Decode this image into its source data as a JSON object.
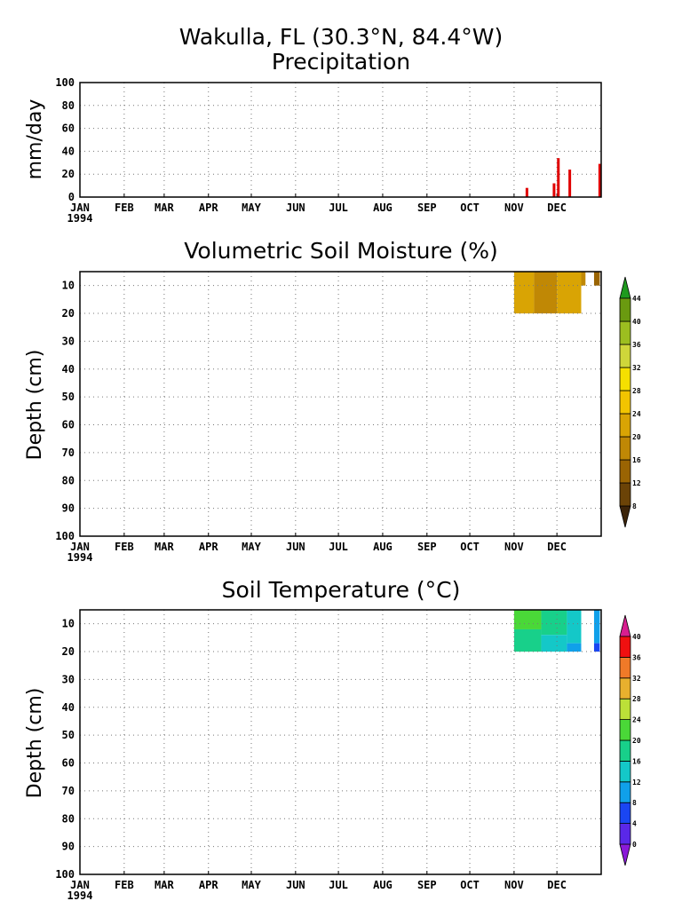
{
  "header": {
    "title_line1": "Wakulla, FL   (30.3°N, 84.4°W)",
    "title_line2": "Precipitation"
  },
  "chart_data": [
    {
      "type": "bar",
      "title": "Precipitation",
      "ylabel": "mm/day",
      "ylim": [
        0,
        100
      ],
      "yticks": [
        "0",
        "20",
        "40",
        "60",
        "80",
        "100"
      ],
      "xlim_days": [
        0,
        365
      ],
      "months": [
        "JAN",
        "FEB",
        "MAR",
        "APR",
        "MAY",
        "JUN",
        "JUL",
        "AUG",
        "SEP",
        "OCT",
        "NOV",
        "DEC"
      ],
      "year_label": "1994",
      "grid": true,
      "bar_color": "#e00000",
      "bars": [
        {
          "date": "1994-11-10",
          "value": 8
        },
        {
          "date": "1994-11-29",
          "value": 12
        },
        {
          "date": "1994-12-02",
          "value": 34
        },
        {
          "date": "1994-12-10",
          "value": 24
        },
        {
          "date": "1994-12-31",
          "value": 29
        }
      ]
    },
    {
      "type": "heatmap",
      "title": "Volumetric Soil Moisture (%)",
      "ylabel": "Depth (cm)",
      "ylim": [
        100,
        5
      ],
      "yticks": [
        "10",
        "20",
        "30",
        "40",
        "50",
        "60",
        "70",
        "80",
        "90",
        "100"
      ],
      "months": [
        "JAN",
        "FEB",
        "MAR",
        "APR",
        "MAY",
        "JUN",
        "JUL",
        "AUG",
        "SEP",
        "OCT",
        "NOV",
        "DEC"
      ],
      "year_label": "1994",
      "grid": true,
      "colorbar": {
        "levels": [
          "8",
          "12",
          "16",
          "20",
          "24",
          "28",
          "32",
          "36",
          "40",
          "44"
        ],
        "colors": [
          "#3c2409",
          "#6b4307",
          "#9a6403",
          "#c08805",
          "#d9a404",
          "#f2c400",
          "#f5e000",
          "#cfd63a",
          "#9cbe20",
          "#6a9a10",
          "#1e9a1e"
        ]
      },
      "cells": [
        {
          "start": "1994-11-01",
          "end": "1994-11-15",
          "depth_top": 5,
          "depth_bottom": 20,
          "value": 22
        },
        {
          "start": "1994-11-15",
          "end": "1994-12-01",
          "depth_top": 5,
          "depth_bottom": 20,
          "value": 18
        },
        {
          "start": "1994-12-01",
          "end": "1994-12-18",
          "depth_top": 5,
          "depth_bottom": 20,
          "value": 20
        },
        {
          "start": "1994-12-18",
          "end": "1994-12-21",
          "depth_top": 5,
          "depth_bottom": 10,
          "value": 18
        },
        {
          "start": "1994-12-27",
          "end": "1994-12-31",
          "depth_top": 5,
          "depth_bottom": 10,
          "value": 14
        }
      ]
    },
    {
      "type": "heatmap",
      "title": "Soil Temperature (°C)",
      "ylabel": "Depth (cm)",
      "ylim": [
        100,
        5
      ],
      "yticks": [
        "10",
        "20",
        "30",
        "40",
        "50",
        "60",
        "70",
        "80",
        "90",
        "100"
      ],
      "months": [
        "JAN",
        "FEB",
        "MAR",
        "APR",
        "MAY",
        "JUN",
        "JUL",
        "AUG",
        "SEP",
        "OCT",
        "NOV",
        "DEC"
      ],
      "year_label": "1994",
      "grid": true,
      "colorbar": {
        "levels": [
          "0",
          "4",
          "8",
          "12",
          "16",
          "20",
          "24",
          "28",
          "32",
          "36",
          "40"
        ],
        "colors": [
          "#8a1ad8",
          "#5a28e8",
          "#1a46f2",
          "#10a0ea",
          "#14c8c8",
          "#18d08a",
          "#4ad838",
          "#bce038",
          "#e8b02e",
          "#f07a28",
          "#f01010",
          "#d81e90"
        ]
      },
      "cells": [
        {
          "start": "1994-11-01",
          "end": "1994-11-20",
          "depth_top": 5,
          "depth_bottom": 12,
          "value": 22
        },
        {
          "start": "1994-11-01",
          "end": "1994-11-20",
          "depth_top": 12,
          "depth_bottom": 20,
          "value": 18
        },
        {
          "start": "1994-11-20",
          "end": "1994-12-08",
          "depth_top": 5,
          "depth_bottom": 14,
          "value": 18
        },
        {
          "start": "1994-11-20",
          "end": "1994-12-08",
          "depth_top": 14,
          "depth_bottom": 20,
          "value": 15
        },
        {
          "start": "1994-12-08",
          "end": "1994-12-18",
          "depth_top": 5,
          "depth_bottom": 17,
          "value": 15
        },
        {
          "start": "1994-12-08",
          "end": "1994-12-18",
          "depth_top": 17,
          "depth_bottom": 20,
          "value": 8
        },
        {
          "start": "1994-12-27",
          "end": "1994-12-31",
          "depth_top": 5,
          "depth_bottom": 17,
          "value": 11
        },
        {
          "start": "1994-12-27",
          "end": "1994-12-31",
          "depth_top": 17,
          "depth_bottom": 20,
          "value": 6
        }
      ]
    }
  ]
}
